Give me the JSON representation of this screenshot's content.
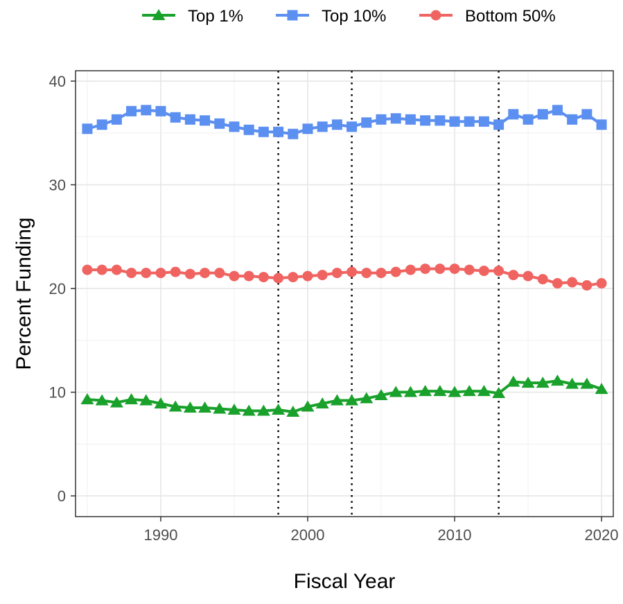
{
  "chart_data": {
    "type": "line",
    "title": "",
    "xlabel": "Fiscal Year",
    "ylabel": "Percent Funding",
    "xlim": [
      1984.2,
      2020.8
    ],
    "ylim": [
      -2,
      41
    ],
    "x_ticks": [
      1990,
      2000,
      2010,
      2020
    ],
    "y_ticks": [
      0,
      10,
      20,
      30,
      40
    ],
    "grid": true,
    "legend_position": "top",
    "vertical_reference_lines": [
      1998,
      2003,
      2013
    ],
    "x": [
      1985,
      1986,
      1987,
      1988,
      1989,
      1990,
      1991,
      1992,
      1993,
      1994,
      1995,
      1996,
      1997,
      1998,
      1999,
      2000,
      2001,
      2002,
      2003,
      2004,
      2005,
      2006,
      2007,
      2008,
      2009,
      2010,
      2011,
      2012,
      2013,
      2014,
      2015,
      2016,
      2017,
      2018,
      2019,
      2020
    ],
    "series": [
      {
        "name": "Top 1%",
        "color": "#1aa12b",
        "marker": "triangle",
        "values": [
          9.3,
          9.2,
          9.0,
          9.3,
          9.2,
          8.9,
          8.6,
          8.5,
          8.5,
          8.4,
          8.3,
          8.2,
          8.2,
          8.3,
          8.1,
          8.6,
          8.9,
          9.2,
          9.2,
          9.4,
          9.7,
          10.0,
          10.0,
          10.1,
          10.1,
          10.0,
          10.1,
          10.1,
          9.9,
          11.0,
          10.9,
          10.9,
          11.1,
          10.8,
          10.8,
          10.3
        ]
      },
      {
        "name": "Top 10%",
        "color": "#5b8ff0",
        "marker": "square",
        "values": [
          35.4,
          35.8,
          36.3,
          37.1,
          37.2,
          37.1,
          36.5,
          36.3,
          36.2,
          35.9,
          35.6,
          35.3,
          35.1,
          35.1,
          34.9,
          35.4,
          35.6,
          35.8,
          35.6,
          36.0,
          36.3,
          36.4,
          36.3,
          36.2,
          36.2,
          36.1,
          36.1,
          36.1,
          35.8,
          36.8,
          36.3,
          36.8,
          37.2,
          36.3,
          36.8,
          35.8
        ]
      },
      {
        "name": "Bottom 50%",
        "color": "#ef6461",
        "marker": "circle",
        "values": [
          21.8,
          21.8,
          21.8,
          21.5,
          21.5,
          21.5,
          21.6,
          21.4,
          21.5,
          21.5,
          21.2,
          21.2,
          21.1,
          21.0,
          21.1,
          21.2,
          21.3,
          21.5,
          21.6,
          21.5,
          21.5,
          21.6,
          21.8,
          21.9,
          21.9,
          21.9,
          21.8,
          21.7,
          21.7,
          21.3,
          21.2,
          20.9,
          20.5,
          20.6,
          20.3,
          20.5
        ]
      }
    ]
  }
}
